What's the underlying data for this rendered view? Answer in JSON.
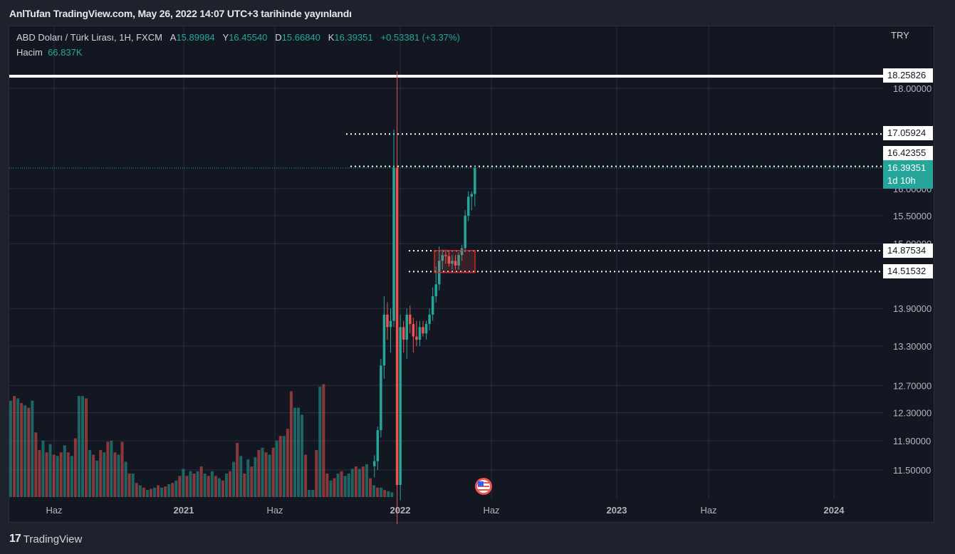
{
  "header": {
    "published_text": "AnlTufan TradingView.com, May 26, 2022 14:07 UTC+3 tarihinde yayınlandı"
  },
  "legend": {
    "symbol": "ABD Doları / Türk Lirası, 1H, FXCM",
    "open_label": "A",
    "open_value": "15.89984",
    "high_label": "Y",
    "high_value": "16.45540",
    "low_label": "D",
    "low_value": "15.66840",
    "close_label": "K",
    "close_value": "16.39351",
    "change": "+0.53381 (+3.37%)",
    "volume_label": "Hacim",
    "volume_value": "66.837K"
  },
  "currency": "TRY",
  "price_tags": {
    "resistance_top": "18.25826",
    "level_1": "17.05924",
    "level_2": "16.42355",
    "current": "16.39351",
    "countdown": "1d 10h",
    "level_3": "14.87534",
    "level_4": "14.51532"
  },
  "footer": {
    "brand": "TradingView"
  },
  "colors": {
    "up": "#26a69a",
    "down": "#ef5350",
    "background": "#131722",
    "grid": "#2a2e39"
  },
  "chart_data": {
    "type": "candlestick",
    "y_scale": "log",
    "y_ticks": [
      "18.00000",
      "16.00000",
      "15.50000",
      "15.00000",
      "13.90000",
      "13.30000",
      "12.70000",
      "12.30000",
      "11.90000",
      "11.50000"
    ],
    "x_ticks": [
      "Haz",
      "2021",
      "Haz",
      "2022",
      "Haz",
      "2023",
      "Haz",
      "2024"
    ],
    "horizontal_levels": [
      18.25826,
      17.05924,
      16.42355,
      14.87534,
      14.51532
    ],
    "current_price": 16.39351,
    "volume_bars": [
      {
        "v": 0.82,
        "up": true
      },
      {
        "v": 0.86,
        "up": false
      },
      {
        "v": 0.84,
        "up": true
      },
      {
        "v": 0.8,
        "up": false
      },
      {
        "v": 0.78,
        "up": true
      },
      {
        "v": 0.76,
        "up": false
      },
      {
        "v": 0.82,
        "up": true
      },
      {
        "v": 0.55,
        "up": false
      },
      {
        "v": 0.4,
        "up": false
      },
      {
        "v": 0.48,
        "up": true
      },
      {
        "v": 0.38,
        "up": false
      },
      {
        "v": 0.45,
        "up": true
      },
      {
        "v": 0.36,
        "up": false
      },
      {
        "v": 0.35,
        "up": true
      },
      {
        "v": 0.38,
        "up": false
      },
      {
        "v": 0.44,
        "up": true
      },
      {
        "v": 0.38,
        "up": false
      },
      {
        "v": 0.35,
        "up": true
      },
      {
        "v": 0.5,
        "up": false
      },
      {
        "v": 0.86,
        "up": true
      },
      {
        "v": 0.86,
        "up": true
      },
      {
        "v": 0.84,
        "up": false
      },
      {
        "v": 0.4,
        "up": true
      },
      {
        "v": 0.36,
        "up": false
      },
      {
        "v": 0.31,
        "up": true
      },
      {
        "v": 0.4,
        "up": false
      },
      {
        "v": 0.38,
        "up": true
      },
      {
        "v": 0.47,
        "up": false
      },
      {
        "v": 0.48,
        "up": true
      },
      {
        "v": 0.38,
        "up": false
      },
      {
        "v": 0.36,
        "up": true
      },
      {
        "v": 0.47,
        "up": false
      },
      {
        "v": 0.3,
        "up": true
      },
      {
        "v": 0.2,
        "up": false
      },
      {
        "v": 0.2,
        "up": true
      },
      {
        "v": 0.12,
        "up": false
      },
      {
        "v": 0.1,
        "up": true
      },
      {
        "v": 0.08,
        "up": false
      },
      {
        "v": 0.06,
        "up": true
      },
      {
        "v": 0.07,
        "up": false
      },
      {
        "v": 0.08,
        "up": true
      },
      {
        "v": 0.1,
        "up": false
      },
      {
        "v": 0.08,
        "up": true
      },
      {
        "v": 0.09,
        "up": false
      },
      {
        "v": 0.11,
        "up": true
      },
      {
        "v": 0.12,
        "up": false
      },
      {
        "v": 0.14,
        "up": true
      },
      {
        "v": 0.18,
        "up": false
      },
      {
        "v": 0.24,
        "up": true
      },
      {
        "v": 0.18,
        "up": false
      },
      {
        "v": 0.22,
        "up": true
      },
      {
        "v": 0.2,
        "up": false
      },
      {
        "v": 0.22,
        "up": true
      },
      {
        "v": 0.26,
        "up": false
      },
      {
        "v": 0.2,
        "up": true
      },
      {
        "v": 0.18,
        "up": false
      },
      {
        "v": 0.22,
        "up": true
      },
      {
        "v": 0.18,
        "up": false
      },
      {
        "v": 0.16,
        "up": true
      },
      {
        "v": 0.14,
        "up": false
      },
      {
        "v": 0.2,
        "up": true
      },
      {
        "v": 0.22,
        "up": false
      },
      {
        "v": 0.3,
        "up": true
      },
      {
        "v": 0.46,
        "up": false
      },
      {
        "v": 0.35,
        "up": true
      },
      {
        "v": 0.2,
        "up": false
      },
      {
        "v": 0.32,
        "up": true
      },
      {
        "v": 0.26,
        "up": false
      },
      {
        "v": 0.34,
        "up": true
      },
      {
        "v": 0.4,
        "up": false
      },
      {
        "v": 0.42,
        "up": true
      },
      {
        "v": 0.38,
        "up": false
      },
      {
        "v": 0.36,
        "up": true
      },
      {
        "v": 0.42,
        "up": false
      },
      {
        "v": 0.48,
        "up": true
      },
      {
        "v": 0.52,
        "up": false
      },
      {
        "v": 0.52,
        "up": true
      },
      {
        "v": 0.58,
        "up": false
      },
      {
        "v": 0.9,
        "up": false
      },
      {
        "v": 0.76,
        "up": true
      },
      {
        "v": 0.76,
        "up": true
      },
      {
        "v": 0.7,
        "up": true
      },
      {
        "v": 0.36,
        "up": false
      },
      {
        "v": 0.06,
        "up": true
      },
      {
        "v": 0.06,
        "up": true
      },
      {
        "v": 0.4,
        "up": false
      },
      {
        "v": 0.94,
        "up": true
      },
      {
        "v": 0.96,
        "up": false
      },
      {
        "v": 0.2,
        "up": false
      },
      {
        "v": 0.14,
        "up": true
      },
      {
        "v": 0.16,
        "up": false
      },
      {
        "v": 0.2,
        "up": true
      },
      {
        "v": 0.22,
        "up": false
      },
      {
        "v": 0.18,
        "up": true
      },
      {
        "v": 0.2,
        "up": true
      },
      {
        "v": 0.24,
        "up": true
      },
      {
        "v": 0.26,
        "up": false
      },
      {
        "v": 0.24,
        "up": true
      },
      {
        "v": 0.26,
        "up": false
      },
      {
        "v": 0.28,
        "up": true
      },
      {
        "v": 0.16,
        "up": false
      },
      {
        "v": 0.1,
        "up": true
      },
      {
        "v": 0.08,
        "up": false
      },
      {
        "v": 0.08,
        "up": true
      },
      {
        "v": 0.06,
        "up": false
      },
      {
        "v": 0.05,
        "up": true
      },
      {
        "v": 0.04,
        "up": true
      }
    ],
    "candles": [
      {
        "o": 11.55,
        "h": 11.7,
        "l": 11.4,
        "c": 11.62
      },
      {
        "o": 11.62,
        "h": 12.1,
        "l": 11.5,
        "c": 12.05
      },
      {
        "o": 12.05,
        "h": 13.1,
        "l": 11.95,
        "c": 13.0
      },
      {
        "o": 13.0,
        "h": 14.1,
        "l": 12.8,
        "c": 13.8
      },
      {
        "o": 13.8,
        "h": 14.0,
        "l": 13.4,
        "c": 13.6
      },
      {
        "o": 13.6,
        "h": 13.9,
        "l": 13.2,
        "c": 13.7
      },
      {
        "o": 13.7,
        "h": 17.15,
        "l": 13.6,
        "c": 16.4
      },
      {
        "o": 16.4,
        "h": 18.36,
        "l": 10.5,
        "c": 11.3
      },
      {
        "o": 11.3,
        "h": 13.8,
        "l": 11.1,
        "c": 13.6
      },
      {
        "o": 13.6,
        "h": 13.7,
        "l": 13.2,
        "c": 13.4
      },
      {
        "o": 13.4,
        "h": 13.9,
        "l": 13.1,
        "c": 13.8
      },
      {
        "o": 13.8,
        "h": 13.95,
        "l": 13.5,
        "c": 13.65
      },
      {
        "o": 13.65,
        "h": 13.75,
        "l": 13.2,
        "c": 13.45
      },
      {
        "o": 13.45,
        "h": 13.7,
        "l": 13.3,
        "c": 13.4
      },
      {
        "o": 13.4,
        "h": 13.7,
        "l": 13.3,
        "c": 13.6
      },
      {
        "o": 13.6,
        "h": 13.7,
        "l": 13.45,
        "c": 13.5
      },
      {
        "o": 13.5,
        "h": 13.7,
        "l": 13.4,
        "c": 13.65
      },
      {
        "o": 13.65,
        "h": 13.9,
        "l": 13.55,
        "c": 13.8
      },
      {
        "o": 13.8,
        "h": 14.25,
        "l": 13.7,
        "c": 14.1
      },
      {
        "o": 14.1,
        "h": 14.6,
        "l": 14.0,
        "c": 14.3
      },
      {
        "o": 14.3,
        "h": 14.95,
        "l": 14.2,
        "c": 14.7
      },
      {
        "o": 14.7,
        "h": 14.9,
        "l": 14.55,
        "c": 14.8
      },
      {
        "o": 14.8,
        "h": 14.9,
        "l": 14.65,
        "c": 14.78
      },
      {
        "o": 14.78,
        "h": 14.88,
        "l": 14.6,
        "c": 14.65
      },
      {
        "o": 14.65,
        "h": 14.8,
        "l": 14.55,
        "c": 14.7
      },
      {
        "o": 14.7,
        "h": 14.8,
        "l": 14.55,
        "c": 14.62
      },
      {
        "o": 14.62,
        "h": 14.85,
        "l": 14.55,
        "c": 14.8
      },
      {
        "o": 14.8,
        "h": 14.98,
        "l": 14.7,
        "c": 14.92
      },
      {
        "o": 14.92,
        "h": 15.6,
        "l": 14.85,
        "c": 15.5
      },
      {
        "o": 15.5,
        "h": 15.95,
        "l": 15.4,
        "c": 15.85
      },
      {
        "o": 15.85,
        "h": 15.95,
        "l": 15.6,
        "c": 15.9
      },
      {
        "o": 15.9,
        "h": 16.45,
        "l": 15.67,
        "c": 16.39
      }
    ]
  }
}
